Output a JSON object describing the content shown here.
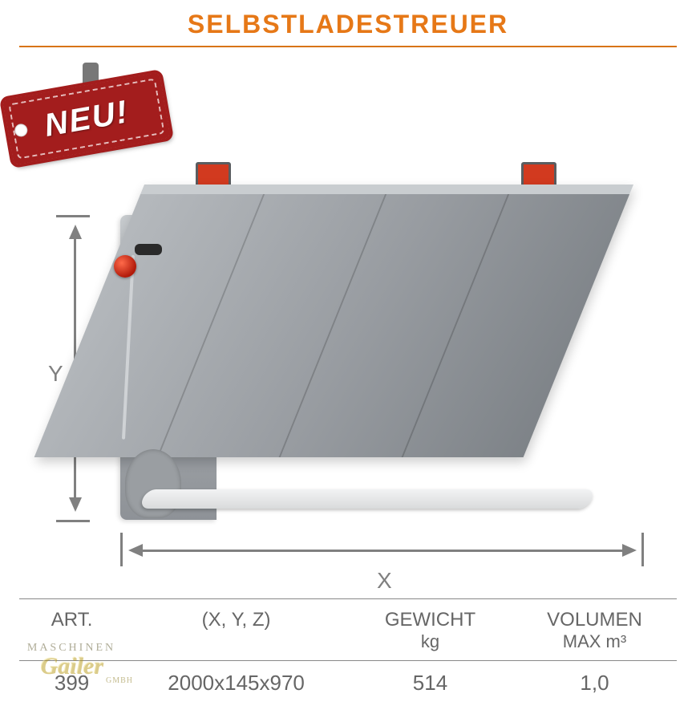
{
  "colors": {
    "accent": "#e67817",
    "rule": "#d87416",
    "badge_bg": "#a31d1d",
    "badge_outline": "#a31d1d",
    "grey_text": "#808080",
    "machine_grey_light": "#c7cbce",
    "machine_grey_dark": "#7e8388",
    "reflector": "#d23a1f"
  },
  "title": "SELBSTLADESTREUER",
  "badge": {
    "text": "NEU!"
  },
  "dimension_labels": {
    "y": "Y",
    "x": "X"
  },
  "table": {
    "headers": {
      "art": "ART.",
      "xyz": "(X, Y, Z)",
      "weight_line1": "GEWICHT",
      "weight_line2": "kg",
      "volume_line1": "VOLUMEN",
      "volume_line2": "MAX m³"
    },
    "row": {
      "art": "399",
      "xyz": "2000x145x970",
      "weight": "514",
      "volume": "1,0"
    }
  },
  "watermark": {
    "top": "MASCHINEN",
    "main": "Gailer",
    "sub": "GMBH"
  },
  "typography": {
    "title_fontsize": 32,
    "table_header_fontsize": 24,
    "table_data_fontsize": 26,
    "badge_fontsize": 40,
    "axis_label_fontsize": 28
  }
}
